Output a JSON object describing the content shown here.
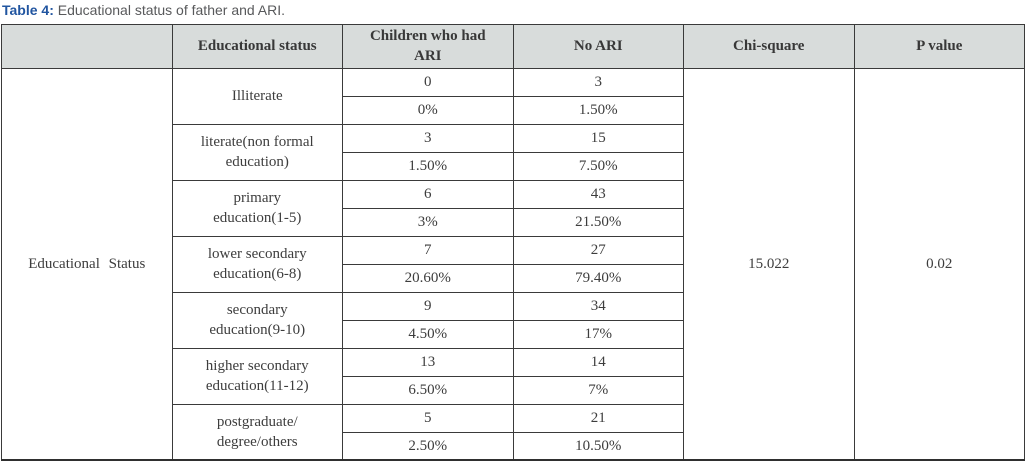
{
  "caption": {
    "label": "Table 4:",
    "text": " Educational status of father and ARI."
  },
  "colors": {
    "caption_accent": "#2155a0",
    "caption_text": "#58595b",
    "header_bg": "#d8dcdb",
    "border": "#3a3a3a",
    "body_text": "#3d3d3d"
  },
  "table": {
    "headers": {
      "blank": "",
      "educational_status": "Educational status",
      "children_ari": "Children who had\nARI",
      "no_ari": "No ARI",
      "chi_square": "Chi-square",
      "p_value": "P value"
    },
    "row_group_label": "Educational Status",
    "chi_square": "15.022",
    "p_value": "0.02",
    "categories": [
      {
        "label": "Illiterate",
        "ari_count": "0",
        "no_ari_count": "3",
        "ari_pct": "0%",
        "no_ari_pct": "1.50%"
      },
      {
        "label": "literate(non formal\neducation)",
        "ari_count": "3",
        "no_ari_count": "15",
        "ari_pct": "1.50%",
        "no_ari_pct": "7.50%"
      },
      {
        "label": "primary\neducation(1-5)",
        "ari_count": "6",
        "no_ari_count": "43",
        "ari_pct": "3%",
        "no_ari_pct": "21.50%"
      },
      {
        "label": "lower secondary\neducation(6-8)",
        "ari_count": "7",
        "no_ari_count": "27",
        "ari_pct": "20.60%",
        "no_ari_pct": "79.40%"
      },
      {
        "label": "secondary\neducation(9-10)",
        "ari_count": "9",
        "no_ari_count": "34",
        "ari_pct": "4.50%",
        "no_ari_pct": "17%"
      },
      {
        "label": "higher secondary\neducation(11-12)",
        "ari_count": "13",
        "no_ari_count": "14",
        "ari_pct": "6.50%",
        "no_ari_pct": "7%"
      },
      {
        "label": "postgraduate/\ndegree/others",
        "ari_count": "5",
        "no_ari_count": "21",
        "ari_pct": "2.50%",
        "no_ari_pct": "10.50%"
      }
    ]
  }
}
